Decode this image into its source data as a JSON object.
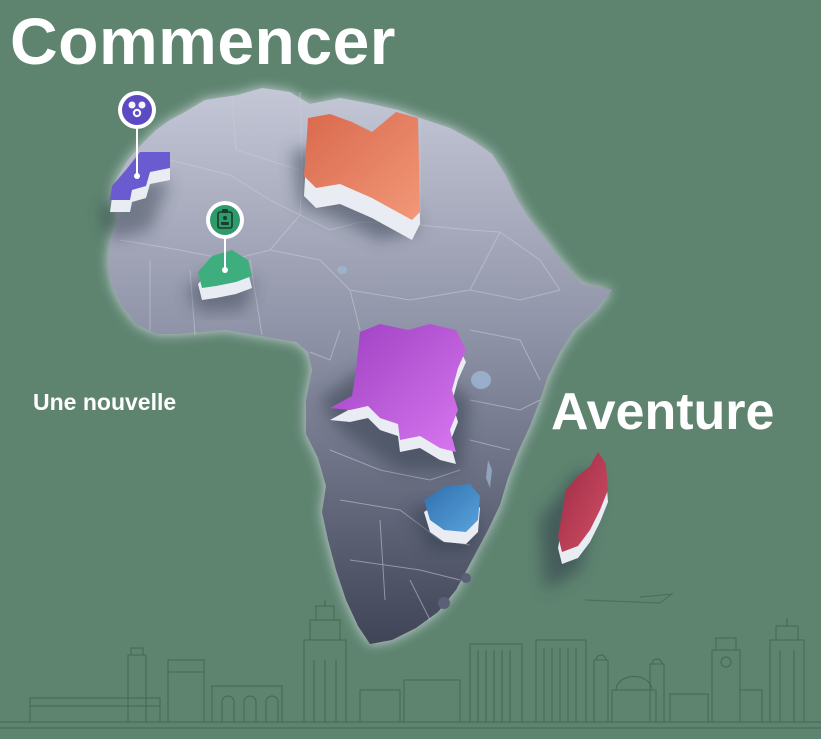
{
  "headline": {
    "top": "Commencer",
    "middle_left": "Une nouvelle",
    "right": "Aventure"
  },
  "colors": {
    "background": "#5e8470",
    "continent": "#8a8fa3",
    "libya": "#e07a5f",
    "drc": "#b64fd6",
    "zimbabwe": "#3f86c4",
    "madagascar": "#b8364f",
    "morocco_pin": "#6b5bd0",
    "burkina_pin": "#3fae7e",
    "text": "#ffffff"
  },
  "highlighted_regions": [
    {
      "name": "libya",
      "color": "#e07a5f"
    },
    {
      "name": "drc",
      "color": "#b64fd6"
    },
    {
      "name": "zimbabwe",
      "color": "#3f86c4"
    },
    {
      "name": "madagascar",
      "color": "#b8364f"
    },
    {
      "name": "morocco",
      "color": "#6b5bd0"
    },
    {
      "name": "burkina-faso",
      "color": "#3fae7e"
    }
  ],
  "markers": [
    {
      "name": "morocco-pin",
      "icon": "people-icon"
    },
    {
      "name": "burkina-pin",
      "icon": "id-card-icon"
    }
  ]
}
